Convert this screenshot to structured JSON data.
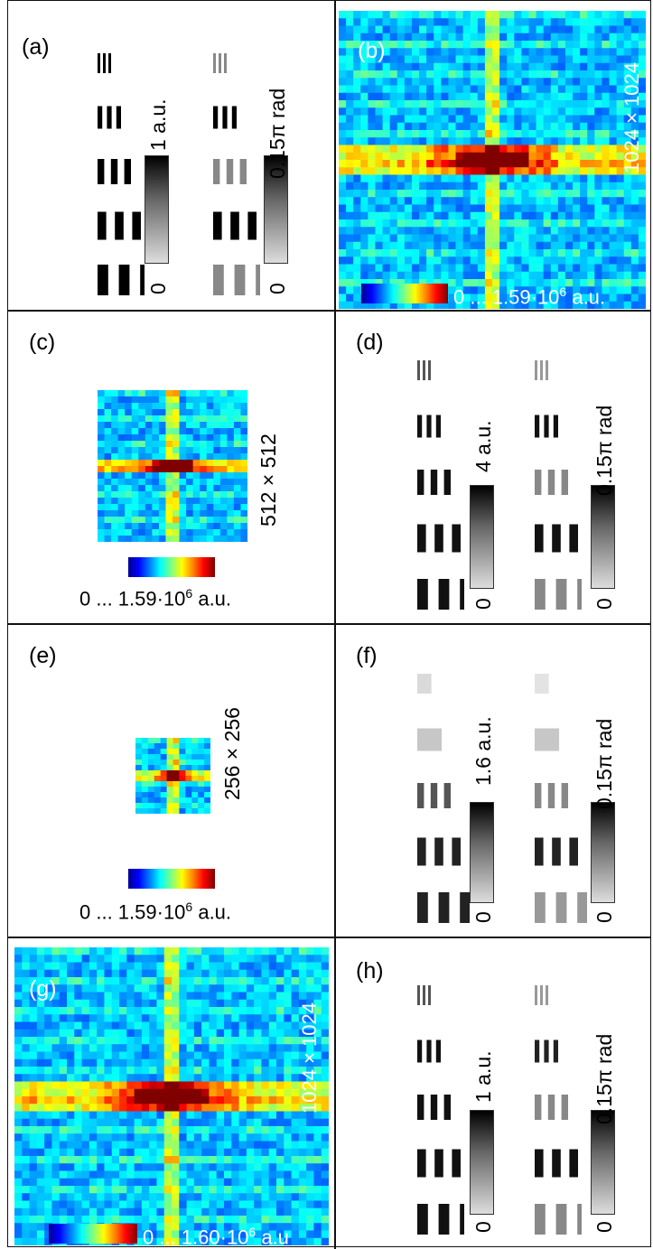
{
  "panels": {
    "a": {
      "label": "(a)",
      "amp_max": "1 a.u.",
      "amp_min": "0",
      "phase_max": "0.15π rad",
      "phase_min": "0"
    },
    "b": {
      "label": "(b)",
      "size": "1024 × 1024",
      "range": "0 ... 1.59·10",
      "exp": "6",
      "unit": " a.u."
    },
    "c": {
      "label": "(c)",
      "size": "512 × 512",
      "range": "0 ... 1.59·10",
      "exp": "6",
      "unit": " a.u."
    },
    "d": {
      "label": "(d)",
      "amp_max": "4 a.u.",
      "amp_min": "0",
      "phase_max": "0.15π rad",
      "phase_min": "0"
    },
    "e": {
      "label": "(e)",
      "size": "256 × 256",
      "range": "0 ... 1.59·10",
      "exp": "6",
      "unit": " a.u."
    },
    "f": {
      "label": "(f)",
      "amp_max": "1.6 a.u.",
      "amp_min": "0",
      "phase_max": "0.15π rad",
      "phase_min": "0"
    },
    "g": {
      "label": "(g)",
      "size": "1024 × 1024",
      "range": "0 ... 1.60·10",
      "exp": "6",
      "unit": " a.u"
    },
    "h": {
      "label": "(h)",
      "amp_max": "1 a.u.",
      "amp_min": "0",
      "phase_max": "0.15π rad",
      "phase_min": "0"
    }
  },
  "colors": {
    "jet_low": "#00008f",
    "jet_high": "#800000",
    "border": "#111111"
  }
}
